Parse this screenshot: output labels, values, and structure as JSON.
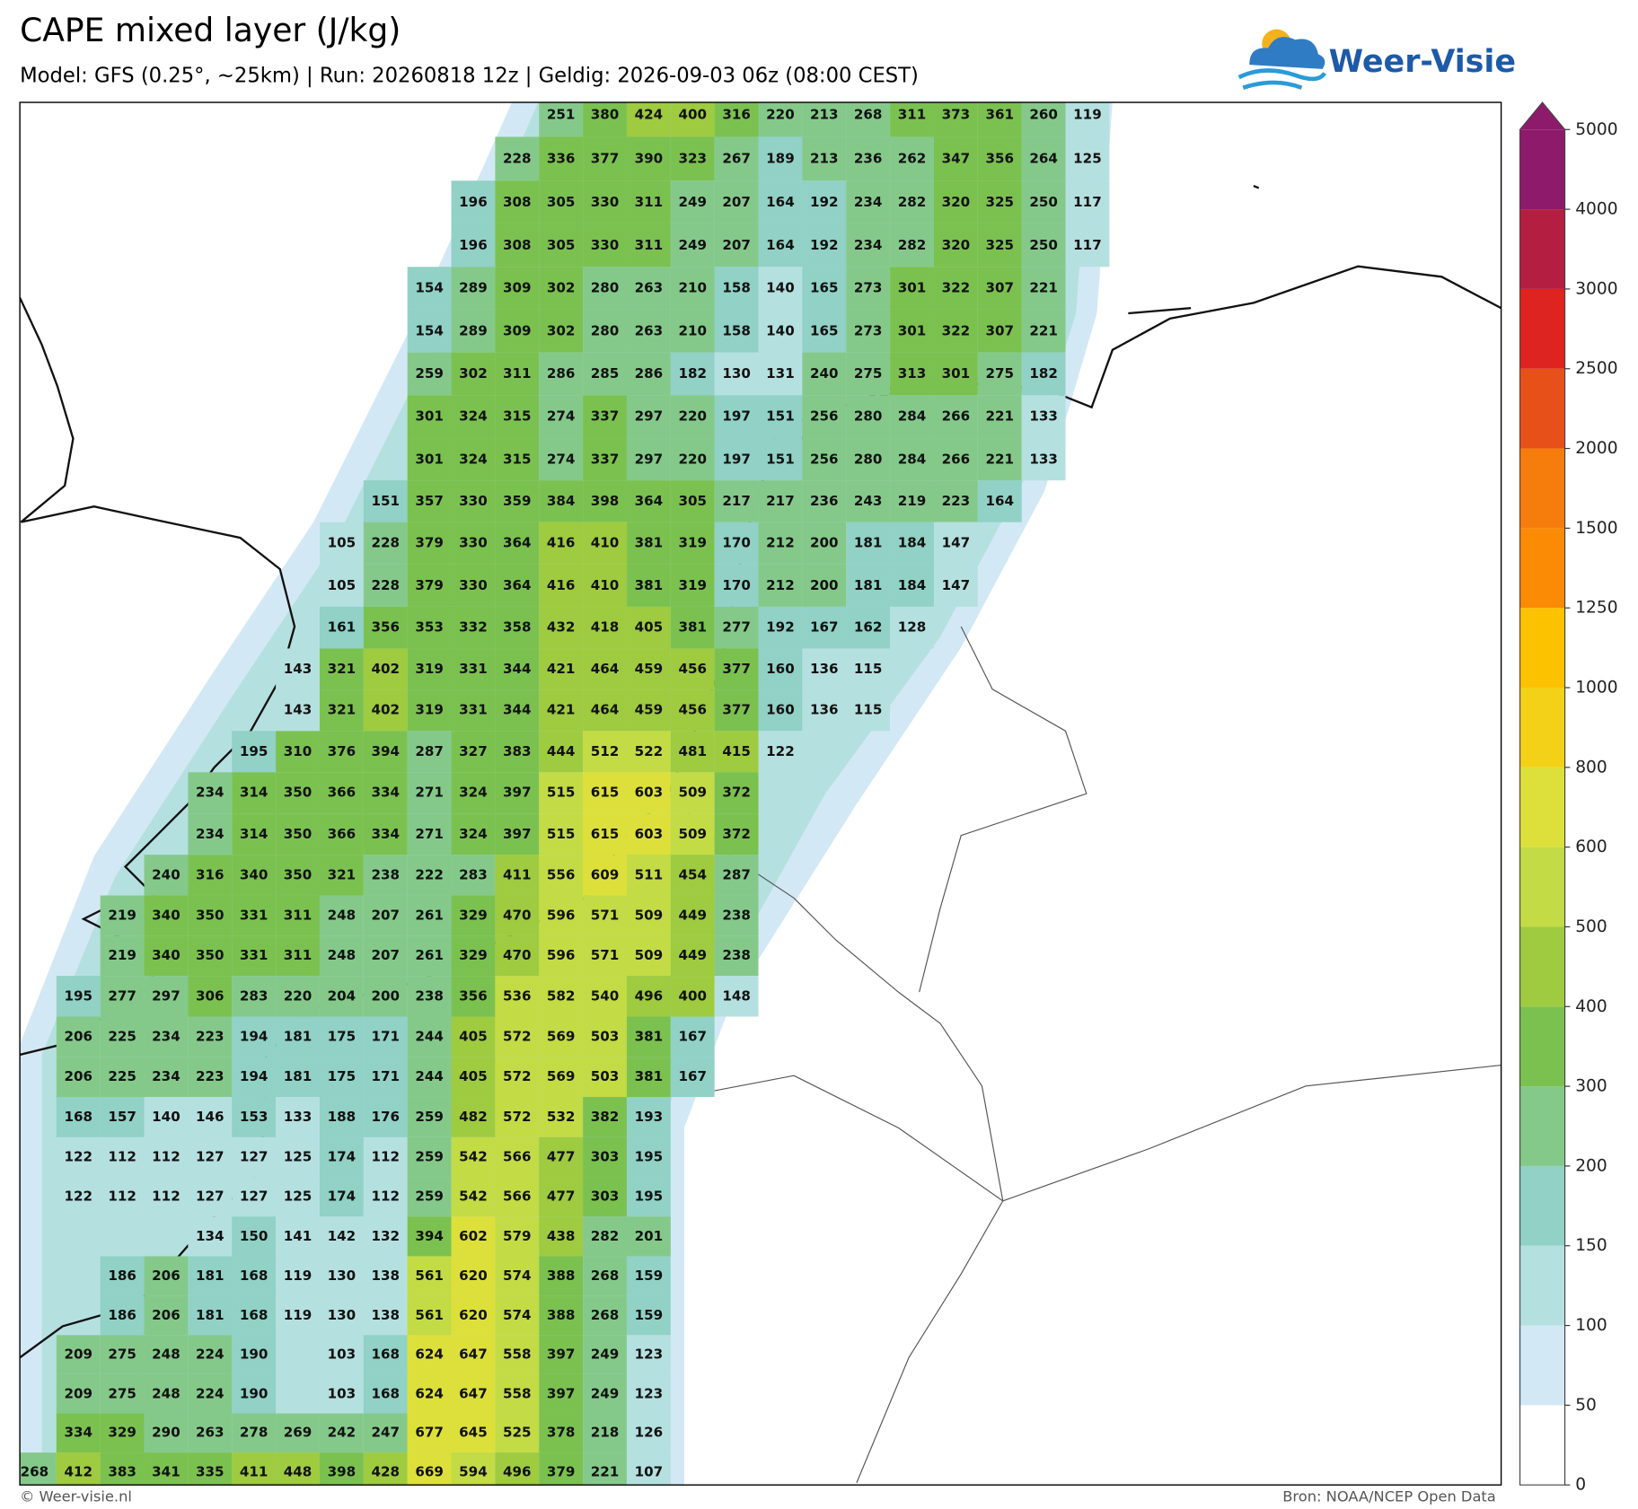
{
  "title": "CAPE mixed layer (J/kg)",
  "subtitle": "Model: GFS (0.25°, ~25km)  |  Run: 20260818 12z  |  Geldig: 2026-09-03 06z (08:00 CEST)",
  "logo": "Weer-Visie",
  "copyright": "© Weer-visie.nl",
  "source": "Bron: NOAA/NCEP Open Data",
  "chart_data": {
    "type": "grid_labels",
    "rows": [
      [
        null,
        null,
        null,
        null,
        null,
        null,
        null,
        null,
        null,
        null,
        null,
        null,
        251,
        380,
        424,
        400,
        316,
        220,
        213,
        268,
        311,
        373,
        361,
        260,
        119
      ],
      [
        null,
        null,
        null,
        null,
        null,
        null,
        null,
        null,
        null,
        null,
        null,
        228,
        336,
        377,
        390,
        323,
        267,
        189,
        213,
        236,
        262,
        347,
        356,
        264,
        125
      ],
      [
        null,
        null,
        null,
        null,
        null,
        null,
        null,
        null,
        null,
        null,
        196,
        308,
        305,
        330,
        311,
        249,
        207,
        164,
        192,
        234,
        282,
        320,
        325,
        250,
        117
      ],
      [
        null,
        null,
        null,
        null,
        null,
        null,
        null,
        null,
        null,
        null,
        196,
        308,
        305,
        330,
        311,
        249,
        207,
        164,
        192,
        234,
        282,
        320,
        325,
        250,
        117
      ],
      [
        null,
        null,
        null,
        null,
        null,
        null,
        null,
        null,
        null,
        154,
        289,
        309,
        302,
        280,
        263,
        210,
        158,
        140,
        165,
        273,
        301,
        322,
        307,
        221,
        null
      ],
      [
        null,
        null,
        null,
        null,
        null,
        null,
        null,
        null,
        null,
        154,
        289,
        309,
        302,
        280,
        263,
        210,
        158,
        140,
        165,
        273,
        301,
        322,
        307,
        221,
        null
      ],
      [
        null,
        null,
        null,
        null,
        null,
        null,
        null,
        null,
        null,
        259,
        302,
        311,
        286,
        285,
        286,
        182,
        130,
        131,
        240,
        275,
        313,
        301,
        275,
        182,
        null
      ],
      [
        null,
        null,
        null,
        null,
        null,
        null,
        null,
        null,
        null,
        301,
        324,
        315,
        274,
        337,
        297,
        220,
        197,
        151,
        256,
        280,
        284,
        266,
        221,
        133,
        null
      ],
      [
        null,
        null,
        null,
        null,
        null,
        null,
        null,
        null,
        null,
        301,
        324,
        315,
        274,
        337,
        297,
        220,
        197,
        151,
        256,
        280,
        284,
        266,
        221,
        133,
        null
      ],
      [
        null,
        null,
        null,
        null,
        null,
        null,
        null,
        null,
        151,
        357,
        330,
        359,
        384,
        398,
        364,
        305,
        217,
        217,
        236,
        243,
        219,
        223,
        164,
        null,
        null
      ],
      [
        null,
        null,
        null,
        null,
        null,
        null,
        null,
        105,
        228,
        379,
        330,
        364,
        416,
        410,
        381,
        319,
        170,
        212,
        200,
        181,
        184,
        147,
        null,
        null,
        null
      ],
      [
        null,
        null,
        null,
        null,
        null,
        null,
        null,
        105,
        228,
        379,
        330,
        364,
        416,
        410,
        381,
        319,
        170,
        212,
        200,
        181,
        184,
        147,
        null,
        null,
        null
      ],
      [
        null,
        null,
        null,
        null,
        null,
        null,
        null,
        161,
        356,
        353,
        332,
        358,
        432,
        418,
        405,
        381,
        277,
        192,
        167,
        162,
        128,
        null,
        null,
        null,
        null
      ],
      [
        null,
        null,
        null,
        null,
        null,
        null,
        143,
        321,
        402,
        319,
        331,
        344,
        421,
        464,
        459,
        456,
        377,
        160,
        136,
        115,
        null,
        null,
        null,
        null,
        null
      ],
      [
        null,
        null,
        null,
        null,
        null,
        null,
        143,
        321,
        402,
        319,
        331,
        344,
        421,
        464,
        459,
        456,
        377,
        160,
        136,
        115,
        null,
        null,
        null,
        null,
        null
      ],
      [
        null,
        null,
        null,
        null,
        null,
        195,
        310,
        376,
        394,
        287,
        327,
        383,
        444,
        512,
        522,
        481,
        415,
        122,
        null,
        null,
        null,
        null,
        null,
        null,
        null
      ],
      [
        null,
        null,
        null,
        null,
        234,
        314,
        350,
        366,
        334,
        271,
        324,
        397,
        515,
        615,
        603,
        509,
        372,
        null,
        null,
        null,
        null,
        null,
        null,
        null,
        null
      ],
      [
        null,
        null,
        null,
        null,
        234,
        314,
        350,
        366,
        334,
        271,
        324,
        397,
        515,
        615,
        603,
        509,
        372,
        null,
        null,
        null,
        null,
        null,
        null,
        null,
        null
      ],
      [
        null,
        null,
        null,
        240,
        316,
        340,
        350,
        321,
        238,
        222,
        283,
        411,
        556,
        609,
        511,
        454,
        287,
        null,
        null,
        null,
        null,
        null,
        null,
        null,
        null
      ],
      [
        null,
        null,
        219,
        340,
        350,
        331,
        311,
        248,
        207,
        261,
        329,
        470,
        596,
        571,
        509,
        449,
        238,
        null,
        null,
        null,
        null,
        null,
        null,
        null,
        null
      ],
      [
        null,
        null,
        219,
        340,
        350,
        331,
        311,
        248,
        207,
        261,
        329,
        470,
        596,
        571,
        509,
        449,
        238,
        null,
        null,
        null,
        null,
        null,
        null,
        null,
        null
      ],
      [
        null,
        195,
        277,
        297,
        306,
        283,
        220,
        204,
        200,
        238,
        356,
        536,
        582,
        540,
        496,
        400,
        148,
        null,
        null,
        null,
        null,
        null,
        null,
        null,
        null
      ],
      [
        null,
        206,
        225,
        234,
        223,
        194,
        181,
        175,
        171,
        244,
        405,
        572,
        569,
        503,
        381,
        167,
        null,
        null,
        null,
        null,
        null,
        null,
        null,
        null,
        null
      ],
      [
        null,
        206,
        225,
        234,
        223,
        194,
        181,
        175,
        171,
        244,
        405,
        572,
        569,
        503,
        381,
        167,
        null,
        null,
        null,
        null,
        null,
        null,
        null,
        null,
        null
      ],
      [
        null,
        168,
        157,
        140,
        146,
        153,
        133,
        188,
        176,
        259,
        482,
        572,
        532,
        382,
        193,
        null,
        null,
        null,
        null,
        null,
        null,
        null,
        null,
        null,
        null
      ],
      [
        null,
        122,
        112,
        112,
        127,
        127,
        125,
        174,
        112,
        259,
        542,
        566,
        477,
        303,
        195,
        null,
        null,
        null,
        null,
        null,
        null,
        null,
        null,
        null,
        null
      ],
      [
        null,
        122,
        112,
        112,
        127,
        127,
        125,
        174,
        112,
        259,
        542,
        566,
        477,
        303,
        195,
        null,
        null,
        null,
        null,
        null,
        null,
        null,
        null,
        null,
        null
      ],
      [
        null,
        null,
        null,
        null,
        134,
        150,
        141,
        142,
        132,
        394,
        602,
        579,
        438,
        282,
        201,
        null,
        null,
        null,
        null,
        null,
        null,
        null,
        null,
        null,
        null
      ],
      [
        null,
        null,
        186,
        206,
        181,
        168,
        119,
        130,
        138,
        561,
        620,
        574,
        388,
        268,
        159,
        null,
        null,
        null,
        null,
        null,
        null,
        null,
        null,
        null,
        null
      ],
      [
        null,
        null,
        186,
        206,
        181,
        168,
        119,
        130,
        138,
        561,
        620,
        574,
        388,
        268,
        159,
        null,
        null,
        null,
        null,
        null,
        null,
        null,
        null,
        null,
        null
      ],
      [
        null,
        209,
        275,
        248,
        224,
        190,
        null,
        103,
        168,
        624,
        647,
        558,
        397,
        249,
        123,
        null,
        null,
        null,
        null,
        null,
        null,
        null,
        null,
        null,
        null
      ],
      [
        null,
        209,
        275,
        248,
        224,
        190,
        null,
        103,
        168,
        624,
        647,
        558,
        397,
        249,
        123,
        null,
        null,
        null,
        null,
        null,
        null,
        null,
        null,
        null,
        null
      ],
      [
        null,
        334,
        329,
        290,
        263,
        278,
        269,
        242,
        247,
        677,
        645,
        525,
        378,
        218,
        126,
        null,
        null,
        null,
        null,
        null,
        null,
        null,
        null,
        null,
        null
      ],
      [
        268,
        412,
        383,
        341,
        335,
        411,
        448,
        398,
        428,
        669,
        594,
        496,
        379,
        221,
        107,
        null,
        null,
        null,
        null,
        null,
        null,
        null,
        null,
        null,
        null
      ]
    ],
    "colorbar": {
      "levels": [
        0,
        50,
        100,
        150,
        200,
        300,
        400,
        500,
        600,
        800,
        1000,
        1250,
        1500,
        2000,
        2500,
        3000,
        4000,
        5000
      ],
      "colors": [
        "#ffffff",
        "#d3e8f5",
        "#b5e0e0",
        "#91d1c6",
        "#85c98a",
        "#7bc150",
        "#9ecb40",
        "#c3db45",
        "#dde03a",
        "#f2d118",
        "#fcc200",
        "#fb8a05",
        "#f67d0c",
        "#e8501a",
        "#de2420",
        "#b41e40",
        "#8e1a6b"
      ],
      "extend_color": "#8e1a6b"
    }
  }
}
